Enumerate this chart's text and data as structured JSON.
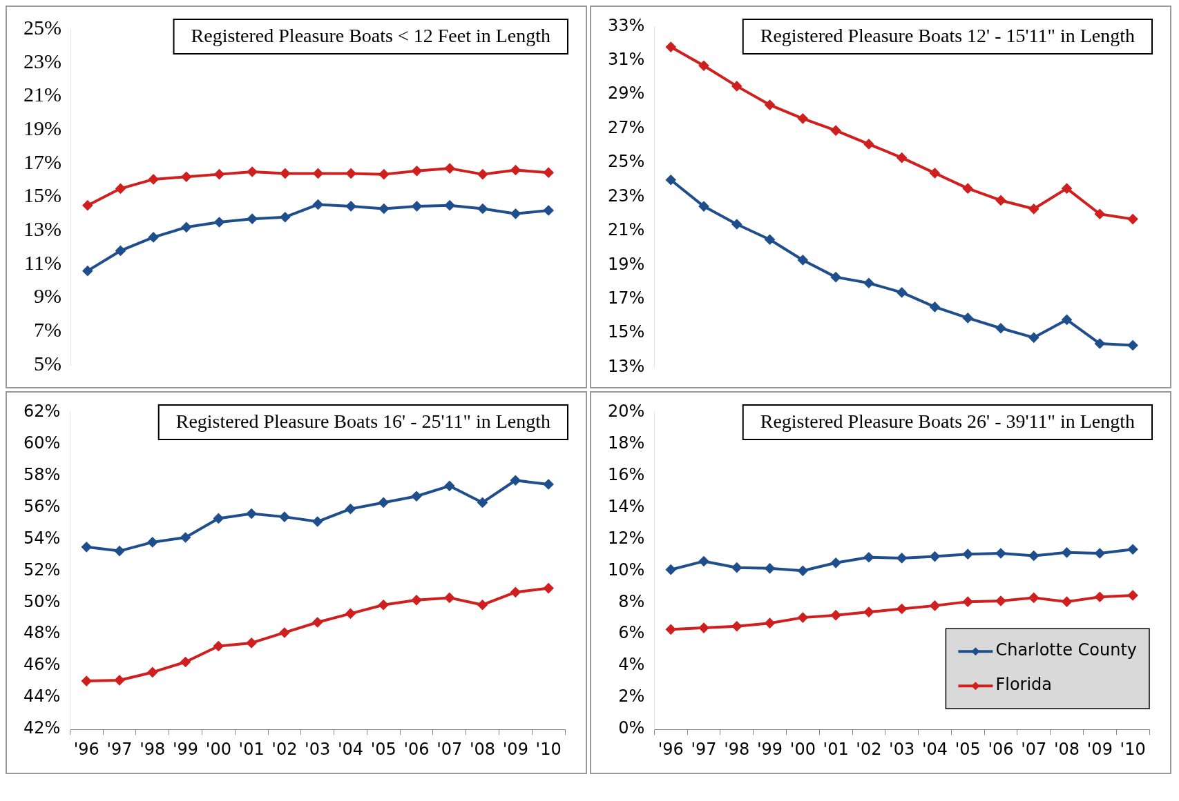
{
  "chart_data": [
    {
      "type": "line",
      "title": "Registered Pleasure Boats < 12 Feet in Length",
      "categories": [
        null,
        null,
        null,
        null,
        null,
        null,
        null,
        null,
        null,
        null,
        null,
        null,
        null,
        null,
        null
      ],
      "tick_labels": "y",
      "grid": false,
      "legend": false,
      "marker": "diamond",
      "line_style": "solid",
      "ylim": [
        5,
        25
      ],
      "yticks": [
        {
          "value": 5,
          "label": "5%"
        },
        {
          "value": 7,
          "label": "7%"
        },
        {
          "value": 9,
          "label": "9%"
        },
        {
          "value": 11,
          "label": "11%"
        },
        {
          "value": 13,
          "label": "13%"
        },
        {
          "value": 15,
          "label": "15%"
        },
        {
          "value": 17,
          "label": "17%"
        },
        {
          "value": 19,
          "label": "19%"
        },
        {
          "value": 21,
          "label": "21%"
        },
        {
          "value": 23,
          "label": "23%"
        },
        {
          "value": 25,
          "label": "25%"
        }
      ],
      "series": [
        {
          "color": "#1f4e8c",
          "values": [
            10.6,
            11.8,
            12.6,
            13.2,
            13.5,
            13.7,
            13.8,
            14.55,
            14.45,
            14.3,
            14.45,
            14.5,
            14.3,
            14.0,
            14.2
          ]
        },
        {
          "color": "#d01f1f",
          "values": [
            14.5,
            15.5,
            16.05,
            16.2,
            16.35,
            16.5,
            16.4,
            16.4,
            16.4,
            16.35,
            16.55,
            16.7,
            16.35,
            16.6,
            16.45
          ]
        }
      ]
    },
    {
      "type": "line",
      "title": "Registered Pleasure Boats 12' - 15'11\" in Length",
      "categories": [
        null,
        null,
        null,
        null,
        null,
        null,
        null,
        null,
        null,
        null,
        null,
        null,
        null,
        null,
        null
      ],
      "tick_labels": "y",
      "grid": false,
      "legend": false,
      "marker": "diamond",
      "line_style": "solid",
      "ylim": [
        13,
        33
      ],
      "yticks": [
        {
          "value": 13,
          "label": "13%"
        },
        {
          "value": 15,
          "label": "15%"
        },
        {
          "value": 17,
          "label": "17%"
        },
        {
          "value": 19,
          "label": "19%"
        },
        {
          "value": 21,
          "label": "21%"
        },
        {
          "value": 23,
          "label": "23%"
        },
        {
          "value": 25,
          "label": "25%"
        },
        {
          "value": 27,
          "label": "27%"
        },
        {
          "value": 29,
          "label": "29%"
        },
        {
          "value": 31,
          "label": "31%"
        },
        {
          "value": 33,
          "label": "33%"
        }
      ],
      "series": [
        {
          "color": "#1f4e8c",
          "values": [
            24.0,
            22.45,
            21.4,
            20.5,
            19.3,
            18.3,
            17.95,
            17.4,
            16.55,
            15.9,
            15.3,
            14.75,
            15.8,
            14.4,
            14.3
          ]
        },
        {
          "color": "#d01f1f",
          "values": [
            31.8,
            30.7,
            29.5,
            28.4,
            27.6,
            26.9,
            26.1,
            25.3,
            24.4,
            23.5,
            22.8,
            22.3,
            23.5,
            22.0,
            21.7
          ]
        }
      ]
    },
    {
      "type": "line",
      "title": "Registered Pleasure Boats 16' - 25'11\" in Length",
      "categories": [
        "'96",
        "'97",
        "'98",
        "'99",
        "'00",
        "'01",
        "'02",
        "'03",
        "'04",
        "'05",
        "'06",
        "'07",
        "'08",
        "'09",
        "'10"
      ],
      "grid": false,
      "legend": false,
      "marker": "diamond",
      "line_style": "solid",
      "ylim": [
        42,
        62
      ],
      "yticks": [
        {
          "value": 42,
          "label": "42%"
        },
        {
          "value": 44,
          "label": "44%"
        },
        {
          "value": 46,
          "label": "46%"
        },
        {
          "value": 48,
          "label": "48%"
        },
        {
          "value": 50,
          "label": "50%"
        },
        {
          "value": 52,
          "label": "52%"
        },
        {
          "value": 54,
          "label": "54%"
        },
        {
          "value": 56,
          "label": "56%"
        },
        {
          "value": 58,
          "label": "58%"
        },
        {
          "value": 60,
          "label": "60%"
        },
        {
          "value": 62,
          "label": "62%"
        }
      ],
      "series": [
        {
          "color": "#1f4e8c",
          "values": [
            53.5,
            53.25,
            53.8,
            54.1,
            55.3,
            55.6,
            55.4,
            55.1,
            55.9,
            56.3,
            56.7,
            57.35,
            56.3,
            57.7,
            57.45
          ]
        },
        {
          "color": "#d01f1f",
          "values": [
            45.05,
            45.1,
            45.6,
            46.25,
            47.25,
            47.45,
            48.1,
            48.75,
            49.3,
            49.85,
            50.15,
            50.3,
            49.85,
            50.65,
            50.9
          ]
        }
      ]
    },
    {
      "type": "line",
      "title": "Registered Pleasure Boats 26' - 39'11\" in Length",
      "categories": [
        "'96",
        "'97",
        "'98",
        "'99",
        "'00",
        "'01",
        "'02",
        "'03",
        "'04",
        "'05",
        "'06",
        "'07",
        "'08",
        "'09",
        "'10"
      ],
      "grid": false,
      "legend": "bottom right",
      "marker": "diamond",
      "line_style": "solid",
      "ylim": [
        0,
        20
      ],
      "yticks": [
        {
          "value": 0,
          "label": "0%"
        },
        {
          "value": 2,
          "label": "2%"
        },
        {
          "value": 4,
          "label": "4%"
        },
        {
          "value": 6,
          "label": "6%"
        },
        {
          "value": 8,
          "label": "8%"
        },
        {
          "value": 10,
          "label": "10%"
        },
        {
          "value": 12,
          "label": "12%"
        },
        {
          "value": 14,
          "label": "14%"
        },
        {
          "value": 16,
          "label": "16%"
        },
        {
          "value": 18,
          "label": "18%"
        },
        {
          "value": 20,
          "label": "20%"
        }
      ],
      "series": [
        {
          "name": "Charlotte County",
          "color": "#1f4e8c",
          "values": [
            10.07,
            10.6,
            10.2,
            10.15,
            10.0,
            10.5,
            10.85,
            10.8,
            10.9,
            11.05,
            11.1,
            10.95,
            11.15,
            11.1,
            11.35
          ]
        },
        {
          "name": "Florida",
          "color": "#d01f1f",
          "values": [
            6.3,
            6.4,
            6.5,
            6.7,
            7.05,
            7.2,
            7.4,
            7.6,
            7.8,
            8.05,
            8.1,
            8.3,
            8.05,
            8.35,
            8.45
          ]
        }
      ]
    }
  ]
}
